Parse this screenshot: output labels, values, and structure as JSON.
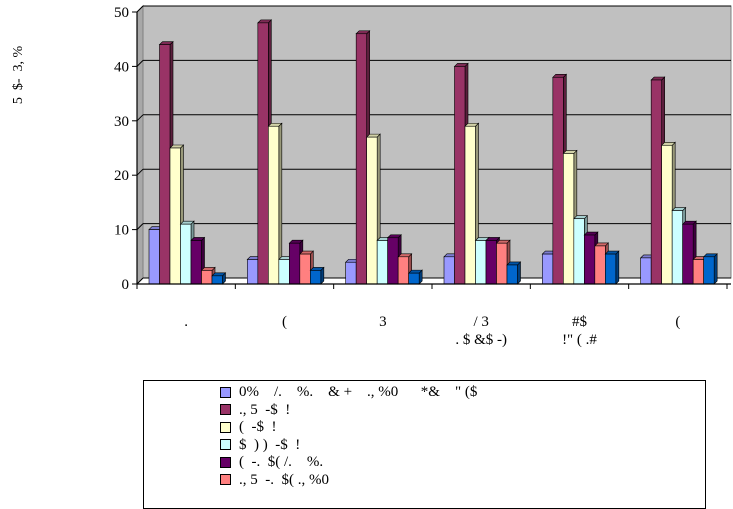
{
  "chart_data": {
    "type": "bar",
    "ylabel": "5  $-  3, %",
    "ylim": [
      0,
      50
    ],
    "yticks": [
      0,
      10,
      20,
      30,
      40,
      50
    ],
    "grid": true,
    "legend_position": "bottom",
    "categories": [
      ".",
      "(",
      "3",
      "/        3\n.    $    &$ -)",
      "#$\n!\"      (  .#",
      "("
    ],
    "series": [
      {
        "name": "0%    /.    %.    & +    ., %0      *&    \" ($",
        "color": "#9999ff",
        "values": [
          10,
          4.5,
          4,
          5,
          5.5,
          4.8
        ]
      },
      {
        "name": "., 5  -$  !",
        "color": "#993366",
        "values": [
          44,
          48,
          46,
          40,
          38,
          37.5
        ]
      },
      {
        "name": "(  -$  !",
        "color": "#ffffcc",
        "values": [
          25,
          29,
          27,
          29,
          24,
          25.5
        ]
      },
      {
        "name": "$  ) )  -$  !",
        "color": "#ccffff",
        "values": [
          11,
          4.5,
          8,
          8,
          12,
          13.5
        ]
      },
      {
        "name": "(  -.  $( /.    %.",
        "color": "#660066",
        "values": [
          8,
          7.5,
          8.5,
          8,
          9,
          11
        ]
      },
      {
        "name": "., 5  -.  $( ., %0",
        "color": "#ff8080",
        "values": [
          2.5,
          5.5,
          5,
          7.5,
          7,
          4.5
        ]
      },
      {
        "name": "",
        "color": "#0066cc",
        "values": [
          1.5,
          2.5,
          2,
          3.5,
          5.5,
          5
        ]
      }
    ]
  }
}
